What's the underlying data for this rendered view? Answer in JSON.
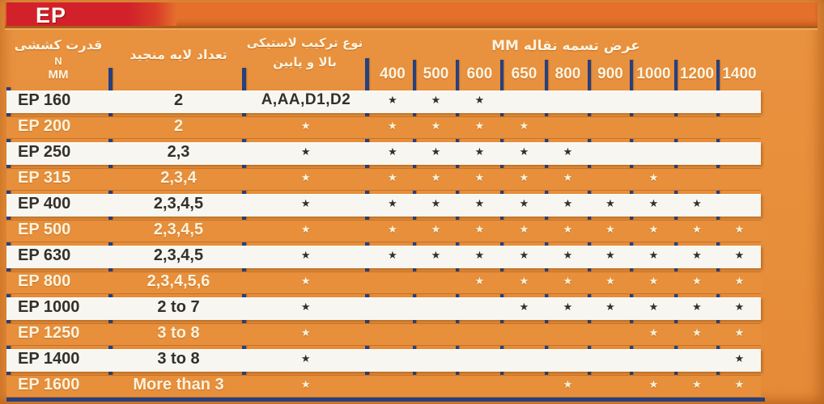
{
  "page": {
    "title_badge": "EP"
  },
  "header": {
    "col_tensile": {
      "fa": "قدرت کششی",
      "unit_top": "N",
      "unit_bottom": "MM"
    },
    "col_plies": {
      "fa": "تعداد لایه منجید"
    },
    "col_rubber": {
      "fa_line1": "نوع ترکیب لاستیکی",
      "fa_line2": "بالا و پایین"
    },
    "col_width": {
      "fa": "عرض تسمه نقاله MM"
    },
    "widths": [
      "400",
      "500",
      "600",
      "650",
      "800",
      "900",
      "1000",
      "1200",
      "1400"
    ]
  },
  "table": {
    "star_symbol": "★",
    "rows": [
      {
        "grade": "EP 160",
        "plies": "2",
        "rubber": "A,AA,D1,D2",
        "rubber_is_star": false,
        "stars": [
          1,
          1,
          1,
          0,
          0,
          0,
          0,
          0,
          0
        ]
      },
      {
        "grade": "EP 200",
        "plies": "2",
        "rubber": "★",
        "rubber_is_star": true,
        "stars": [
          1,
          1,
          1,
          1,
          0,
          0,
          0,
          0,
          0
        ]
      },
      {
        "grade": "EP 250",
        "plies": "2,3",
        "rubber": "★",
        "rubber_is_star": true,
        "stars": [
          1,
          1,
          1,
          1,
          1,
          0,
          0,
          0,
          0
        ]
      },
      {
        "grade": "EP 315",
        "plies": "2,3,4",
        "rubber": "★",
        "rubber_is_star": true,
        "stars": [
          1,
          1,
          1,
          1,
          1,
          0,
          1,
          0,
          0
        ]
      },
      {
        "grade": "EP 400",
        "plies": "2,3,4,5",
        "rubber": "★",
        "rubber_is_star": true,
        "stars": [
          1,
          1,
          1,
          1,
          1,
          1,
          1,
          1,
          0
        ]
      },
      {
        "grade": "EP 500",
        "plies": "2,3,4,5",
        "rubber": "★",
        "rubber_is_star": true,
        "stars": [
          1,
          1,
          1,
          1,
          1,
          1,
          1,
          1,
          1
        ]
      },
      {
        "grade": "EP 630",
        "plies": "2,3,4,5",
        "rubber": "★",
        "rubber_is_star": true,
        "stars": [
          1,
          1,
          1,
          1,
          1,
          1,
          1,
          1,
          1
        ]
      },
      {
        "grade": "EP 800",
        "plies": "2,3,4,5,6",
        "rubber": "★",
        "rubber_is_star": true,
        "stars": [
          0,
          0,
          1,
          1,
          1,
          1,
          1,
          1,
          1
        ]
      },
      {
        "grade": "EP 1000",
        "plies": "2 to 7",
        "rubber": "★",
        "rubber_is_star": true,
        "stars": [
          0,
          0,
          0,
          1,
          1,
          1,
          1,
          1,
          1
        ]
      },
      {
        "grade": "EP 1250",
        "plies": "3 to 8",
        "rubber": "★",
        "rubber_is_star": true,
        "stars": [
          0,
          0,
          0,
          0,
          0,
          0,
          1,
          1,
          1
        ]
      },
      {
        "grade": "EP 1400",
        "plies": "3 to 8",
        "rubber": "★",
        "rubber_is_star": true,
        "stars": [
          0,
          0,
          0,
          0,
          0,
          0,
          0,
          0,
          1
        ]
      },
      {
        "grade": "EP 1600",
        "plies": "More than 3",
        "rubber": "★",
        "rubber_is_star": true,
        "stars": [
          0,
          0,
          0,
          0,
          1,
          0,
          1,
          1,
          1
        ]
      }
    ]
  },
  "colors": {
    "background_orange": "#E8913C",
    "banner_orange": "#E4702C",
    "brand_red": "#D2212B",
    "grid_navy": "#27407E",
    "row_white": "#F8F6F0",
    "text_dark": "#33302C",
    "text_cream": "#FCF4DF"
  }
}
